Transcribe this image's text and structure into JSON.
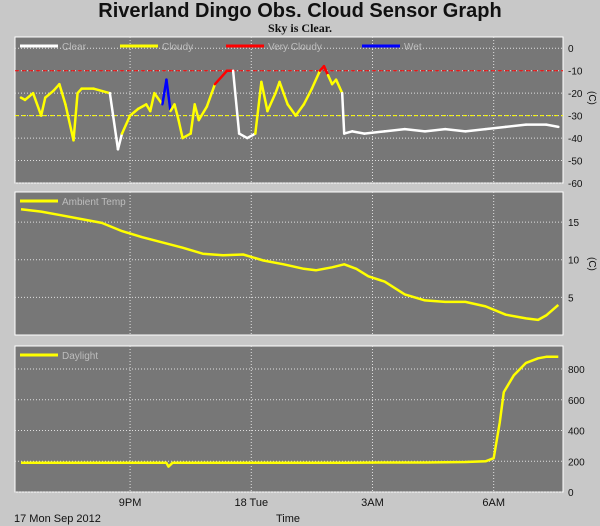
{
  "title": "Riverland Dingo Obs. Cloud Sensor Graph",
  "subtitle": "Sky is Clear.",
  "footer_date": "17 Mon Sep 2012",
  "footer_time_label": "Time",
  "x_ticks": [
    "9PM",
    "18 Tue",
    "3AM",
    "6AM"
  ],
  "unit_label": "(C)",
  "chart_data": [
    {
      "type": "line",
      "name": "cloud",
      "ylim": [
        -60,
        5
      ],
      "yticks": [
        0,
        -10,
        -20,
        -30,
        -40,
        -50,
        -60
      ],
      "thresholds": [
        {
          "y": -10,
          "color": "#ff0000"
        },
        {
          "y": -30,
          "color": "#ffff00"
        }
      ],
      "legend": [
        {
          "label": "Clear",
          "color": "#ffffff"
        },
        {
          "label": "Cloudy",
          "color": "#ffff00"
        },
        {
          "label": "Very Cloudy",
          "color": "#ff0000"
        },
        {
          "label": "Wet",
          "color": "#0000ff"
        }
      ],
      "x_hours": [
        0,
        0.1,
        0.3,
        0.5,
        0.6,
        0.8,
        0.95,
        1.1,
        1.3,
        1.4,
        1.5,
        1.8,
        2.2,
        2.4,
        2.5,
        2.7,
        2.9,
        3.1,
        3.2,
        3.3,
        3.5,
        3.6,
        3.7,
        3.8,
        3.9,
        4.0,
        4.2,
        4.3,
        4.4,
        4.6,
        4.8,
        5.0,
        5.1,
        5.25,
        5.4,
        5.6,
        5.8,
        5.95,
        6.1,
        6.3,
        6.4,
        6.6,
        6.8,
        7.0,
        7.2,
        7.4,
        7.5,
        7.6,
        7.7,
        7.8,
        7.95,
        8.0,
        8.2,
        8.5,
        9.0,
        9.5,
        10.0,
        10.5,
        11.0,
        11.5,
        12.0,
        12.5,
        13.0,
        13.3
      ],
      "values": [
        -22,
        -23,
        -20,
        -30,
        -22,
        -19,
        -16,
        -25,
        -41,
        -20,
        -18,
        -18,
        -20,
        -45,
        -38,
        -30,
        -27,
        -25,
        -28,
        -20,
        -25,
        -14,
        -28,
        -25,
        -32,
        -40,
        -38,
        -25,
        -32,
        -26,
        -16,
        -12,
        -10,
        -10,
        -38,
        -40,
        -38,
        -15,
        -28,
        -20,
        -15,
        -25,
        -30,
        -25,
        -18,
        -10,
        -8,
        -12,
        -16,
        -14,
        -20,
        -38,
        -37,
        -38,
        -37,
        -36,
        -37,
        -36,
        -37,
        -36,
        -35,
        -34,
        -34,
        -35
      ],
      "status": [
        "Cloudy",
        "Cloudy",
        "Cloudy",
        "Cloudy",
        "Cloudy",
        "Cloudy",
        "Cloudy",
        "Cloudy",
        "Cloudy",
        "Cloudy",
        "Cloudy",
        "Cloudy",
        "Cloudy",
        "Clear",
        "Clear",
        "Cloudy",
        "Cloudy",
        "Cloudy",
        "Cloudy",
        "Cloudy",
        "Cloudy",
        "Wet",
        "Wet",
        "Cloudy",
        "Cloudy",
        "Cloudy",
        "Cloudy",
        "Cloudy",
        "Cloudy",
        "Cloudy",
        "Cloudy",
        "Very Cloudy",
        "Very Cloudy",
        "Very Cloudy",
        "Clear",
        "Clear",
        "Clear",
        "Cloudy",
        "Cloudy",
        "Cloudy",
        "Cloudy",
        "Cloudy",
        "Cloudy",
        "Cloudy",
        "Cloudy",
        "Cloudy",
        "Very Cloudy",
        "Very Cloudy",
        "Cloudy",
        "Cloudy",
        "Cloudy",
        "Clear",
        "Clear",
        "Clear",
        "Clear",
        "Clear",
        "Clear",
        "Clear",
        "Clear",
        "Clear",
        "Clear",
        "Clear",
        "Clear",
        "Clear"
      ]
    },
    {
      "type": "line",
      "name": "ambient",
      "ylim": [
        0,
        19
      ],
      "yticks": [
        5,
        10,
        15
      ],
      "legend": [
        {
          "label": "Ambient Temp",
          "color": "#ffff00"
        }
      ],
      "x_hours": [
        0,
        0.5,
        1.0,
        1.5,
        2.0,
        2.5,
        3.0,
        3.5,
        4.0,
        4.5,
        5.0,
        5.5,
        6.0,
        6.5,
        7.0,
        7.3,
        7.7,
        8.0,
        8.3,
        8.6,
        9.0,
        9.5,
        10.0,
        10.5,
        11.0,
        11.5,
        12.0,
        12.5,
        12.8,
        13.0,
        13.3
      ],
      "values": [
        16.7,
        16.4,
        15.9,
        15.4,
        14.9,
        13.8,
        13.0,
        12.3,
        11.6,
        10.8,
        10.6,
        10.7,
        9.9,
        9.4,
        8.8,
        8.6,
        9.0,
        9.4,
        8.8,
        7.8,
        7.1,
        5.4,
        4.6,
        4.4,
        4.4,
        3.8,
        2.7,
        2.2,
        2.0,
        2.6,
        4.0
      ]
    },
    {
      "type": "line",
      "name": "daylight",
      "ylim": [
        0,
        950
      ],
      "yticks": [
        0,
        200,
        400,
        600,
        800
      ],
      "legend": [
        {
          "label": "Daylight",
          "color": "#ffff00"
        }
      ],
      "x_hours": [
        0,
        1.0,
        2.0,
        3.0,
        3.6,
        3.65,
        3.75,
        4.0,
        5.0,
        6.0,
        7.0,
        8.0,
        9.0,
        10.0,
        11.0,
        11.5,
        11.7,
        11.85,
        11.95,
        12.2,
        12.5,
        12.8,
        13.0,
        13.3
      ],
      "values": [
        190,
        190,
        190,
        190,
        190,
        165,
        190,
        190,
        190,
        190,
        190,
        190,
        192,
        192,
        195,
        200,
        220,
        450,
        650,
        760,
        840,
        870,
        880,
        880
      ]
    }
  ]
}
